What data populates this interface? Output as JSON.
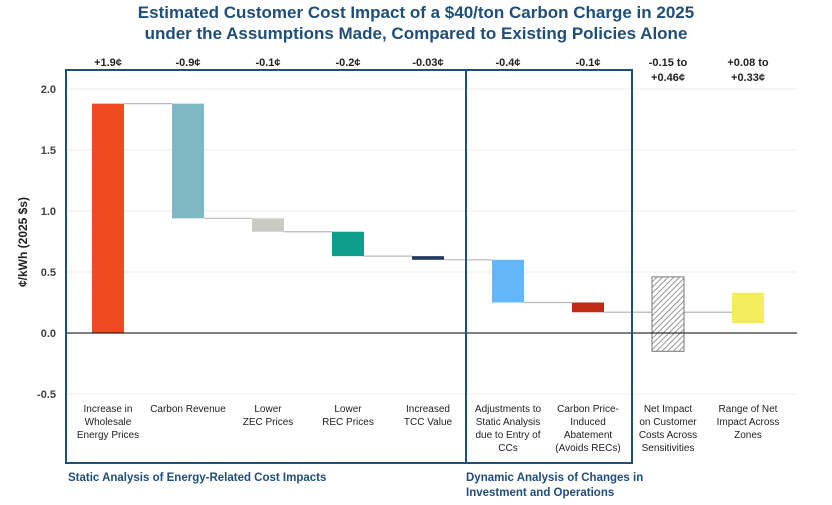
{
  "title_line1": "Estimated Customer Cost Impact of a $40/ton Carbon Charge in 2025",
  "title_line2": "under the Assumptions Made, Compared to Existing Policies Alone",
  "groups": {
    "static_label": "Static Analysis of Energy-Related Cost Impacts",
    "dynamic_label_1": "Dynamic Analysis of Changes in",
    "dynamic_label_2": "Investment and Operations"
  },
  "colors": {
    "title": "#1f4e79",
    "box": "#1f4e79",
    "connector": "#b8b8b8",
    "zero_line": "#000000"
  },
  "chart_data": {
    "type": "bar",
    "subtype": "waterfall",
    "ylabel": "¢/kWh (2025 $s)",
    "ylim": [
      -0.5,
      2.0
    ],
    "yticks": [
      -0.5,
      0.0,
      0.5,
      1.0,
      1.5,
      2.0
    ],
    "grid": true,
    "bars": [
      {
        "label_lines": [
          "Increase in",
          "Wholesale",
          "Energy Prices"
        ],
        "top_label": [
          "+1.9¢"
        ],
        "start": 0.0,
        "end": 1.88,
        "color": "#f04a23",
        "pattern": "solid"
      },
      {
        "label_lines": [
          "Carbon Revenue"
        ],
        "top_label": [
          "-0.9¢"
        ],
        "start": 1.88,
        "end": 0.94,
        "color": "#7fb7c3",
        "pattern": "solid"
      },
      {
        "label_lines": [
          "Lower",
          "ZEC Prices"
        ],
        "top_label": [
          "-0.1¢"
        ],
        "start": 0.94,
        "end": 0.83,
        "color": "#c9cbc2",
        "pattern": "solid"
      },
      {
        "label_lines": [
          "Lower",
          "REC Prices"
        ],
        "top_label": [
          "-0.2¢"
        ],
        "start": 0.83,
        "end": 0.63,
        "color": "#0f9e8c",
        "pattern": "solid"
      },
      {
        "label_lines": [
          "Increased",
          "TCC Value"
        ],
        "top_label": [
          "-0.03¢"
        ],
        "start": 0.63,
        "end": 0.6,
        "color": "#203864",
        "pattern": "solid"
      },
      {
        "label_lines": [
          "Adjustments to",
          "Static Analysis",
          "due to Entry of",
          "CCs"
        ],
        "top_label": [
          "-0.4¢"
        ],
        "start": 0.6,
        "end": 0.25,
        "color": "#63b7f8",
        "pattern": "solid"
      },
      {
        "label_lines": [
          "Carbon Price-",
          "Induced",
          "Abatement",
          "(Avoids RECs)"
        ],
        "top_label": [
          "-0.1¢"
        ],
        "start": 0.25,
        "end": 0.17,
        "color": "#be2a13",
        "pattern": "solid"
      },
      {
        "label_lines": [
          "Net Impact",
          "on Customer",
          "Costs Across",
          "Sensitivities"
        ],
        "top_label": [
          "-0.15 to",
          "+0.46¢"
        ],
        "start": -0.15,
        "end": 0.46,
        "color": "#9a9a9a",
        "pattern": "hatch"
      },
      {
        "label_lines": [
          "Range of Net",
          "Impact Across",
          "Zones"
        ],
        "top_label": [
          "+0.08 to",
          "+0.33¢"
        ],
        "start": 0.08,
        "end": 0.33,
        "color": "#f1ed5c",
        "pattern": "solid"
      }
    ],
    "connector_levels": [
      1.88,
      0.94,
      0.83,
      0.63,
      0.6,
      0.25,
      0.17,
      0.17
    ]
  }
}
